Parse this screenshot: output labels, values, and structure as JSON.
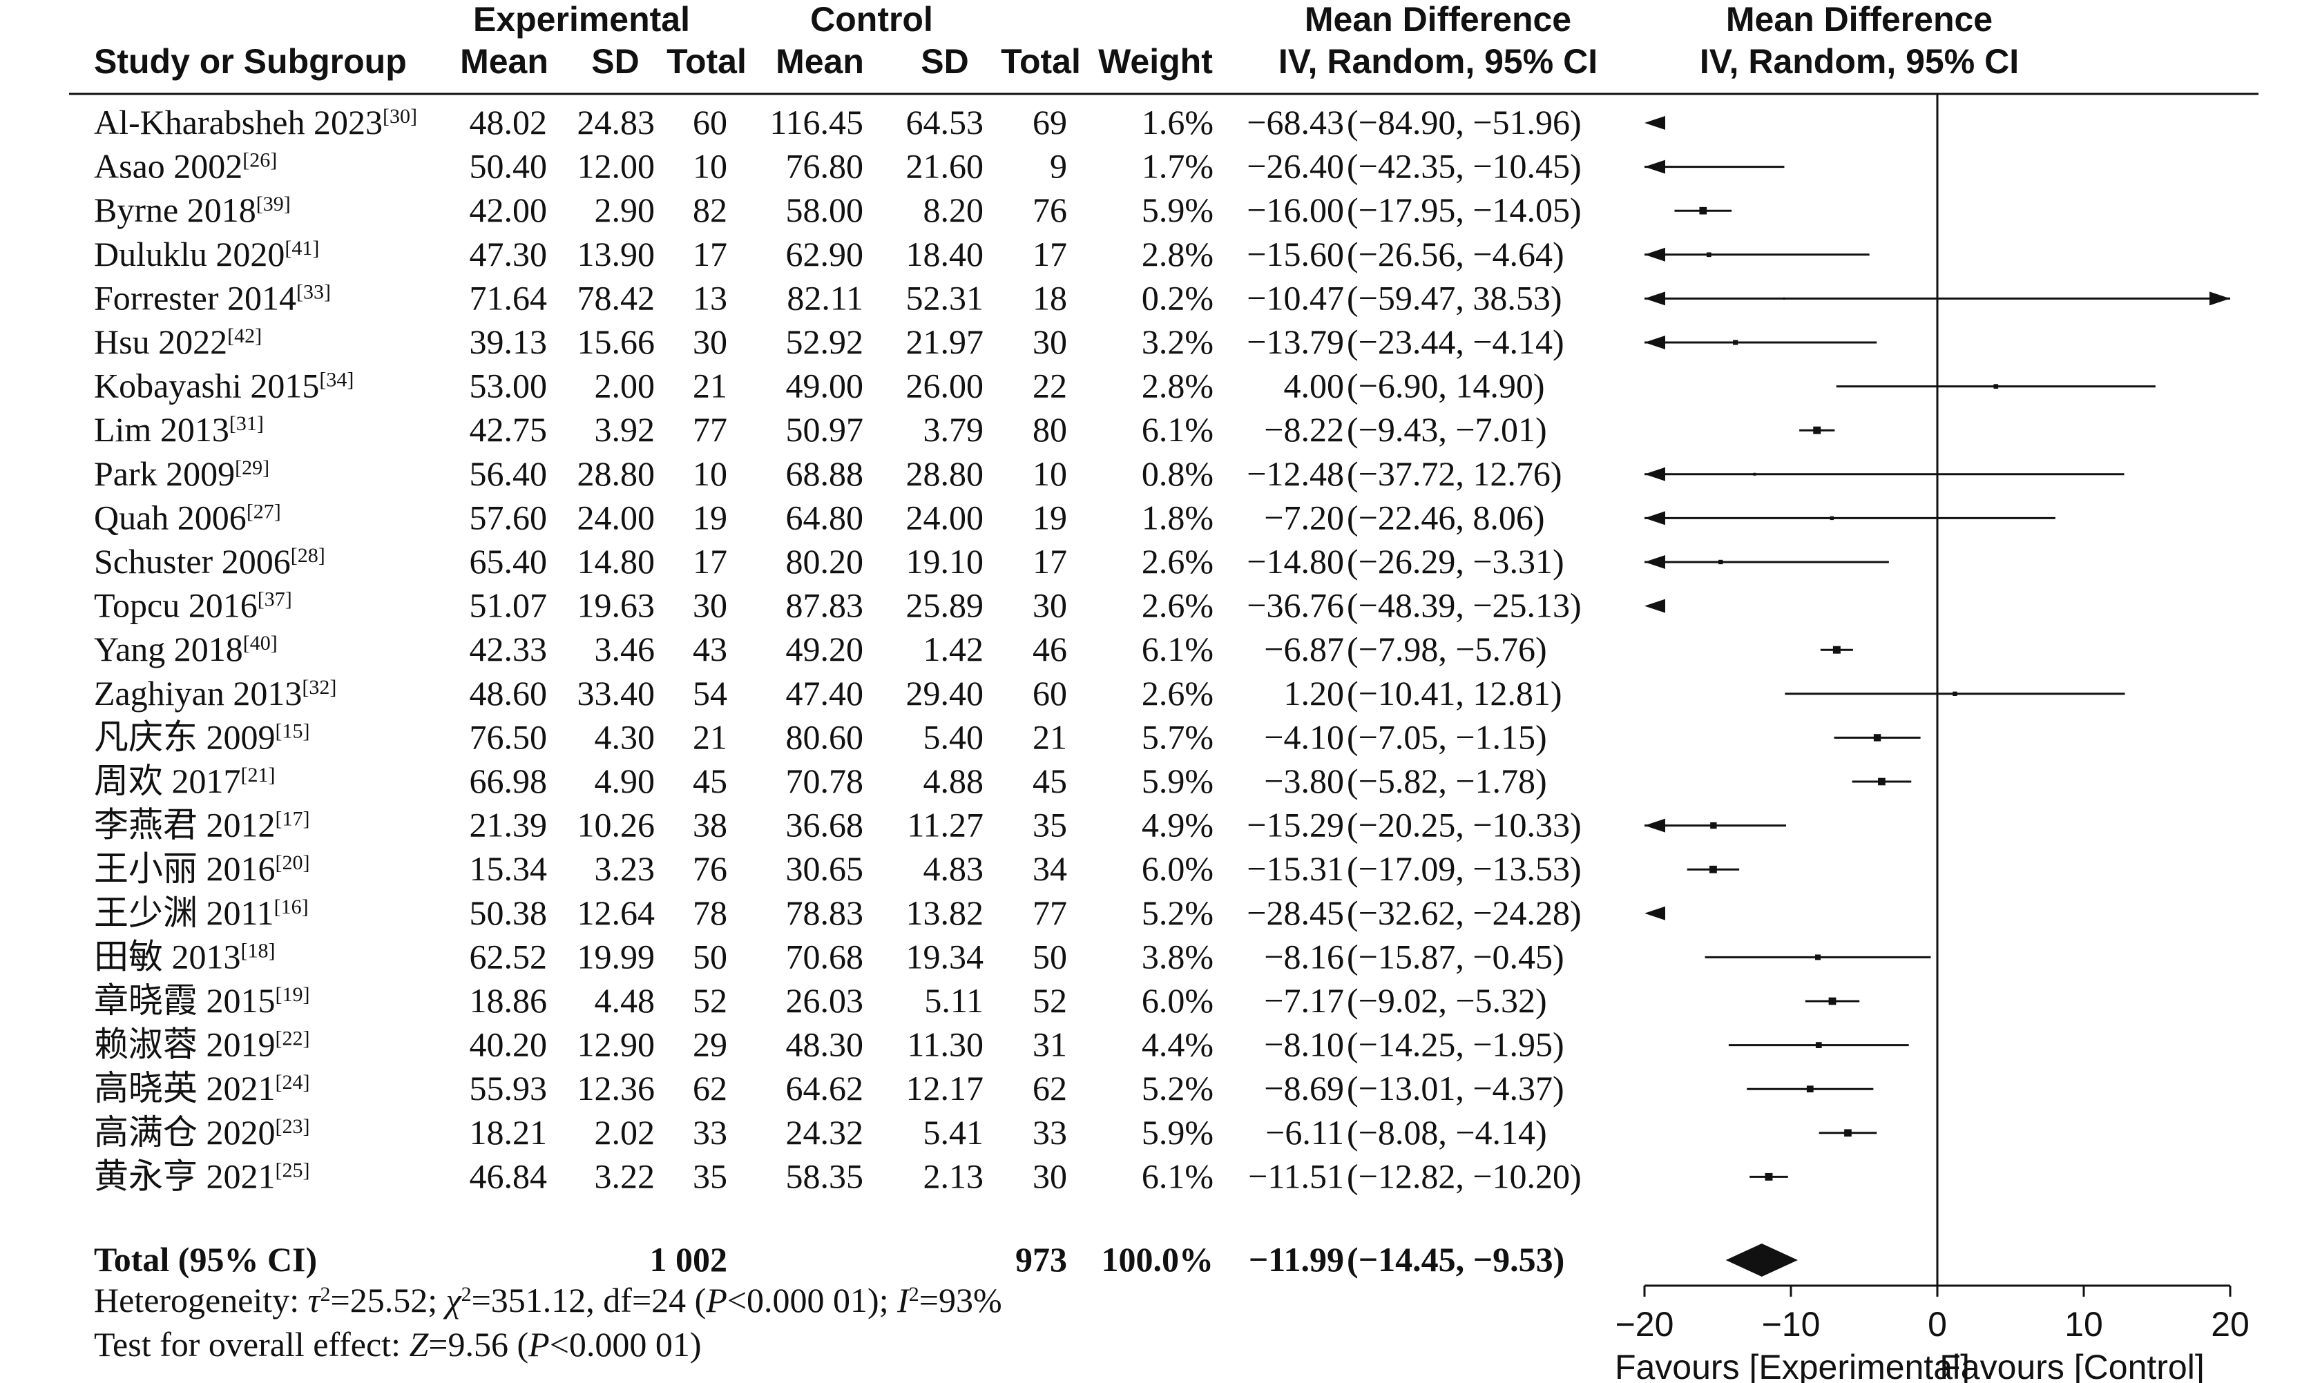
{
  "headers": {
    "group_experimental": "Experimental",
    "group_control": "Control",
    "study": "Study or Subgroup",
    "mean": "Mean",
    "sd": "SD",
    "total": "Total",
    "weight": "Weight",
    "md_title": "Mean Difference",
    "md_method": "IV, Random, 95% CI",
    "plot_title": "Mean Difference",
    "plot_method": "IV, Random, 95% CI"
  },
  "chart_data": {
    "type": "forest",
    "xlim": [
      -20,
      20
    ],
    "xticks": [
      "−20",
      "−10",
      "0",
      "10",
      "20"
    ],
    "xlabel_left": "Favours [Experimental]",
    "xlabel_right": "Favours [Control]",
    "studies": [
      {
        "name": "Al-Kharabsheh 2023",
        "ref": "[30]",
        "e_mean": "48.02",
        "e_sd": "24.83",
        "e_total": "60",
        "c_mean": "116.45",
        "c_sd": "64.53",
        "c_total": "69",
        "weight": "1.6%",
        "md_text": "−68.43",
        "ci_text": "(−84.90, −51.96)",
        "md": -68.43,
        "lo": -84.9,
        "hi": -51.96
      },
      {
        "name": "Asao 2002",
        "ref": "[26]",
        "e_mean": "50.40",
        "e_sd": "12.00",
        "e_total": "10",
        "c_mean": "76.80",
        "c_sd": "21.60",
        "c_total": "9",
        "weight": "1.7%",
        "md_text": "−26.40",
        "ci_text": "(−42.35, −10.45)",
        "md": -26.4,
        "lo": -42.35,
        "hi": -10.45
      },
      {
        "name": "Byrne 2018",
        "ref": "[39]",
        "e_mean": "42.00",
        "e_sd": "2.90",
        "e_total": "82",
        "c_mean": "58.00",
        "c_sd": "8.20",
        "c_total": "76",
        "weight": "5.9%",
        "md_text": "−16.00",
        "ci_text": "(−17.95, −14.05)",
        "md": -16.0,
        "lo": -17.95,
        "hi": -14.05
      },
      {
        "name": "Duluklu 2020",
        "ref": "[41]",
        "e_mean": "47.30",
        "e_sd": "13.90",
        "e_total": "17",
        "c_mean": "62.90",
        "c_sd": "18.40",
        "c_total": "17",
        "weight": "2.8%",
        "md_text": "−15.60",
        "ci_text": "(−26.56, −4.64)",
        "md": -15.6,
        "lo": -26.56,
        "hi": -4.64
      },
      {
        "name": "Forrester 2014",
        "ref": "[33]",
        "e_mean": "71.64",
        "e_sd": "78.42",
        "e_total": "13",
        "c_mean": "82.11",
        "c_sd": "52.31",
        "c_total": "18",
        "weight": "0.2%",
        "md_text": "−10.47",
        "ci_text": "(−59.47, 38.53)",
        "md": -10.47,
        "lo": -59.47,
        "hi": 38.53
      },
      {
        "name": "Hsu 2022",
        "ref": "[42]",
        "e_mean": "39.13",
        "e_sd": "15.66",
        "e_total": "30",
        "c_mean": "52.92",
        "c_sd": "21.97",
        "c_total": "30",
        "weight": "3.2%",
        "md_text": "−13.79",
        "ci_text": "(−23.44, −4.14)",
        "md": -13.79,
        "lo": -23.44,
        "hi": -4.14
      },
      {
        "name": "Kobayashi 2015",
        "ref": "[34]",
        "e_mean": "53.00",
        "e_sd": "2.00",
        "e_total": "21",
        "c_mean": "49.00",
        "c_sd": "26.00",
        "c_total": "22",
        "weight": "2.8%",
        "md_text": "4.00",
        "ci_text": "(−6.90, 14.90)",
        "md": 4.0,
        "lo": -6.9,
        "hi": 14.9
      },
      {
        "name": "Lim 2013",
        "ref": "[31]",
        "e_mean": "42.75",
        "e_sd": "3.92",
        "e_total": "77",
        "c_mean": "50.97",
        "c_sd": "3.79",
        "c_total": "80",
        "weight": "6.1%",
        "md_text": "−8.22",
        "ci_text": "(−9.43, −7.01)",
        "md": -8.22,
        "lo": -9.43,
        "hi": -7.01
      },
      {
        "name": "Park 2009",
        "ref": "[29]",
        "e_mean": "56.40",
        "e_sd": "28.80",
        "e_total": "10",
        "c_mean": "68.88",
        "c_sd": "28.80",
        "c_total": "10",
        "weight": "0.8%",
        "md_text": "−12.48",
        "ci_text": "(−37.72, 12.76)",
        "md": -12.48,
        "lo": -37.72,
        "hi": 12.76
      },
      {
        "name": "Quah 2006",
        "ref": "[27]",
        "e_mean": "57.60",
        "e_sd": "24.00",
        "e_total": "19",
        "c_mean": "64.80",
        "c_sd": "24.00",
        "c_total": "19",
        "weight": "1.8%",
        "md_text": "−7.20",
        "ci_text": "(−22.46, 8.06)",
        "md": -7.2,
        "lo": -22.46,
        "hi": 8.06
      },
      {
        "name": "Schuster 2006",
        "ref": "[28]",
        "e_mean": "65.40",
        "e_sd": "14.80",
        "e_total": "17",
        "c_mean": "80.20",
        "c_sd": "19.10",
        "c_total": "17",
        "weight": "2.6%",
        "md_text": "−14.80",
        "ci_text": "(−26.29, −3.31)",
        "md": -14.8,
        "lo": -26.29,
        "hi": -3.31
      },
      {
        "name": "Topcu 2016",
        "ref": "[37]",
        "e_mean": "51.07",
        "e_sd": "19.63",
        "e_total": "30",
        "c_mean": "87.83",
        "c_sd": "25.89",
        "c_total": "30",
        "weight": "2.6%",
        "md_text": "−36.76",
        "ci_text": "(−48.39, −25.13)",
        "md": -36.76,
        "lo": -48.39,
        "hi": -25.13
      },
      {
        "name": "Yang 2018",
        "ref": "[40]",
        "e_mean": "42.33",
        "e_sd": "3.46",
        "e_total": "43",
        "c_mean": "49.20",
        "c_sd": "1.42",
        "c_total": "46",
        "weight": "6.1%",
        "md_text": "−6.87",
        "ci_text": "(−7.98, −5.76)",
        "md": -6.87,
        "lo": -7.98,
        "hi": -5.76
      },
      {
        "name": "Zaghiyan 2013",
        "ref": "[32]",
        "e_mean": "48.60",
        "e_sd": "33.40",
        "e_total": "54",
        "c_mean": "47.40",
        "c_sd": "29.40",
        "c_total": "60",
        "weight": "2.6%",
        "md_text": "1.20",
        "ci_text": "(−10.41, 12.81)",
        "md": 1.2,
        "lo": -10.41,
        "hi": 12.81
      },
      {
        "name": "凡庆东 2009",
        "ref": "[15]",
        "e_mean": "76.50",
        "e_sd": "4.30",
        "e_total": "21",
        "c_mean": "80.60",
        "c_sd": "5.40",
        "c_total": "21",
        "weight": "5.7%",
        "md_text": "−4.10",
        "ci_text": "(−7.05, −1.15)",
        "md": -4.1,
        "lo": -7.05,
        "hi": -1.15
      },
      {
        "name": "周欢 2017",
        "ref": "[21]",
        "e_mean": "66.98",
        "e_sd": "4.90",
        "e_total": "45",
        "c_mean": "70.78",
        "c_sd": "4.88",
        "c_total": "45",
        "weight": "5.9%",
        "md_text": "−3.80",
        "ci_text": "(−5.82, −1.78)",
        "md": -3.8,
        "lo": -5.82,
        "hi": -1.78
      },
      {
        "name": "李燕君 2012",
        "ref": "[17]",
        "e_mean": "21.39",
        "e_sd": "10.26",
        "e_total": "38",
        "c_mean": "36.68",
        "c_sd": "11.27",
        "c_total": "35",
        "weight": "4.9%",
        "md_text": "−15.29",
        "ci_text": "(−20.25, −10.33)",
        "md": -15.29,
        "lo": -20.25,
        "hi": -10.33
      },
      {
        "name": "王小丽 2016",
        "ref": "[20]",
        "e_mean": "15.34",
        "e_sd": "3.23",
        "e_total": "76",
        "c_mean": "30.65",
        "c_sd": "4.83",
        "c_total": "34",
        "weight": "6.0%",
        "md_text": "−15.31",
        "ci_text": "(−17.09, −13.53)",
        "md": -15.31,
        "lo": -17.09,
        "hi": -13.53
      },
      {
        "name": "王少渊 2011",
        "ref": "[16]",
        "e_mean": "50.38",
        "e_sd": "12.64",
        "e_total": "78",
        "c_mean": "78.83",
        "c_sd": "13.82",
        "c_total": "77",
        "weight": "5.2%",
        "md_text": "−28.45",
        "ci_text": "(−32.62, −24.28)",
        "md": -28.45,
        "lo": -32.62,
        "hi": -24.28
      },
      {
        "name": "田敏 2013",
        "ref": "[18]",
        "e_mean": "62.52",
        "e_sd": "19.99",
        "e_total": "50",
        "c_mean": "70.68",
        "c_sd": "19.34",
        "c_total": "50",
        "weight": "3.8%",
        "md_text": "−8.16",
        "ci_text": "(−15.87, −0.45)",
        "md": -8.16,
        "lo": -15.87,
        "hi": -0.45
      },
      {
        "name": "章晓霞 2015",
        "ref": "[19]",
        "e_mean": "18.86",
        "e_sd": "4.48",
        "e_total": "52",
        "c_mean": "26.03",
        "c_sd": "5.11",
        "c_total": "52",
        "weight": "6.0%",
        "md_text": "−7.17",
        "ci_text": "(−9.02, −5.32)",
        "md": -7.17,
        "lo": -9.02,
        "hi": -5.32
      },
      {
        "name": "赖淑蓉 2019",
        "ref": "[22]",
        "e_mean": "40.20",
        "e_sd": "12.90",
        "e_total": "29",
        "c_mean": "48.30",
        "c_sd": "11.30",
        "c_total": "31",
        "weight": "4.4%",
        "md_text": "−8.10",
        "ci_text": "(−14.25, −1.95)",
        "md": -8.1,
        "lo": -14.25,
        "hi": -1.95
      },
      {
        "name": "高晓英 2021",
        "ref": "[24]",
        "e_mean": "55.93",
        "e_sd": "12.36",
        "e_total": "62",
        "c_mean": "64.62",
        "c_sd": "12.17",
        "c_total": "62",
        "weight": "5.2%",
        "md_text": "−8.69",
        "ci_text": "(−13.01, −4.37)",
        "md": -8.69,
        "lo": -13.01,
        "hi": -4.37
      },
      {
        "name": "高满仓 2020",
        "ref": "[23]",
        "e_mean": "18.21",
        "e_sd": "2.02",
        "e_total": "33",
        "c_mean": "24.32",
        "c_sd": "5.41",
        "c_total": "33",
        "weight": "5.9%",
        "md_text": "−6.11",
        "ci_text": "(−8.08, −4.14)",
        "md": -6.11,
        "lo": -8.08,
        "hi": -4.14
      },
      {
        "name": "黄永亨 2021",
        "ref": "[25]",
        "e_mean": "46.84",
        "e_sd": "3.22",
        "e_total": "35",
        "c_mean": "58.35",
        "c_sd": "2.13",
        "c_total": "30",
        "weight": "6.1%",
        "md_text": "−11.51",
        "ci_text": "(−12.82, −10.20)",
        "md": -11.51,
        "lo": -12.82,
        "hi": -10.2
      }
    ],
    "total": {
      "name": "Total (95% CI)",
      "e_total": "1 002",
      "c_total": "973",
      "weight": "100.0%",
      "md_text": "−11.99",
      "ci_text": "(−14.45, −9.53)",
      "md": -11.99,
      "lo": -14.45,
      "hi": -9.53
    },
    "heterogeneity": {
      "label": "Heterogeneity: ",
      "tau_sym": "τ",
      "tau_val": "=25.52; ",
      "chi_sym": "χ",
      "chi_val": "=351.12, df=24 (",
      "p_sym": "P",
      "p_val": "<0.000 01); ",
      "i_sym": "I",
      "i_val": "=93%"
    },
    "overall": {
      "label": "Test for overall effect: ",
      "z_sym": "Z",
      "z_val": "=9.56 (",
      "p_sym": "P",
      "p_val": "<0.000 01)"
    }
  }
}
